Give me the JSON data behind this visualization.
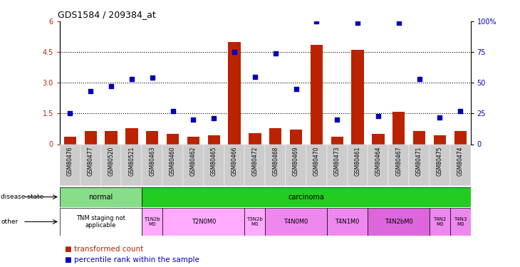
{
  "title": "GDS1584 / 209384_at",
  "samples": [
    "GSM80476",
    "GSM80477",
    "GSM80520",
    "GSM80521",
    "GSM80463",
    "GSM80460",
    "GSM80462",
    "GSM80465",
    "GSM80466",
    "GSM80472",
    "GSM80468",
    "GSM80469",
    "GSM80470",
    "GSM80473",
    "GSM80461",
    "GSM80464",
    "GSM80467",
    "GSM80471",
    "GSM80475",
    "GSM80474"
  ],
  "bar_values": [
    0.35,
    0.65,
    0.65,
    0.8,
    0.65,
    0.5,
    0.38,
    0.42,
    5.0,
    0.55,
    0.78,
    0.72,
    4.85,
    0.35,
    4.6,
    0.5,
    1.58,
    0.65,
    0.42,
    0.65
  ],
  "dot_values_pct": [
    25,
    43,
    47,
    53,
    54,
    27,
    20,
    21,
    75,
    55,
    74,
    45,
    100,
    20,
    99,
    23,
    99,
    53,
    22,
    27
  ],
  "ylim_left": [
    0,
    6
  ],
  "ylim_right": [
    0,
    100
  ],
  "yticks_left": [
    0,
    1.5,
    3.0,
    4.5,
    6.0
  ],
  "yticks_right_vals": [
    0,
    25,
    50,
    75,
    100
  ],
  "yticks_right_labels": [
    "0",
    "25",
    "50",
    "75",
    "100%"
  ],
  "bar_color": "#bb2200",
  "dot_color": "#0000bb",
  "bg_color": "#ffffff",
  "disease_normal_color": "#88dd88",
  "disease_carcinoma_color": "#22cc22",
  "other_groups": [
    {
      "label": "TNM staging not\napplicable",
      "start": 0,
      "end": 4,
      "color": "#ffffff",
      "fontsize": 6
    },
    {
      "label": "T1N2b\nM0",
      "start": 4,
      "end": 5,
      "color": "#ffaaff",
      "fontsize": 5
    },
    {
      "label": "T2N0M0",
      "start": 5,
      "end": 9,
      "color": "#ffaaff",
      "fontsize": 6
    },
    {
      "label": "T3N2b\nM0",
      "start": 9,
      "end": 10,
      "color": "#ffaaff",
      "fontsize": 5
    },
    {
      "label": "T4N0M0",
      "start": 10,
      "end": 13,
      "color": "#ee88ee",
      "fontsize": 6
    },
    {
      "label": "T4N1M0",
      "start": 13,
      "end": 15,
      "color": "#ee88ee",
      "fontsize": 6
    },
    {
      "label": "T4N2bM0",
      "start": 15,
      "end": 18,
      "color": "#dd66dd",
      "fontsize": 6
    },
    {
      "label": "T4N2\nM0",
      "start": 18,
      "end": 19,
      "color": "#ee88ee",
      "fontsize": 5
    },
    {
      "label": "T4N3\nM0",
      "start": 19,
      "end": 20,
      "color": "#ee88ee",
      "fontsize": 5
    }
  ],
  "n_samples": 20,
  "tick_bg_color": "#cccccc"
}
